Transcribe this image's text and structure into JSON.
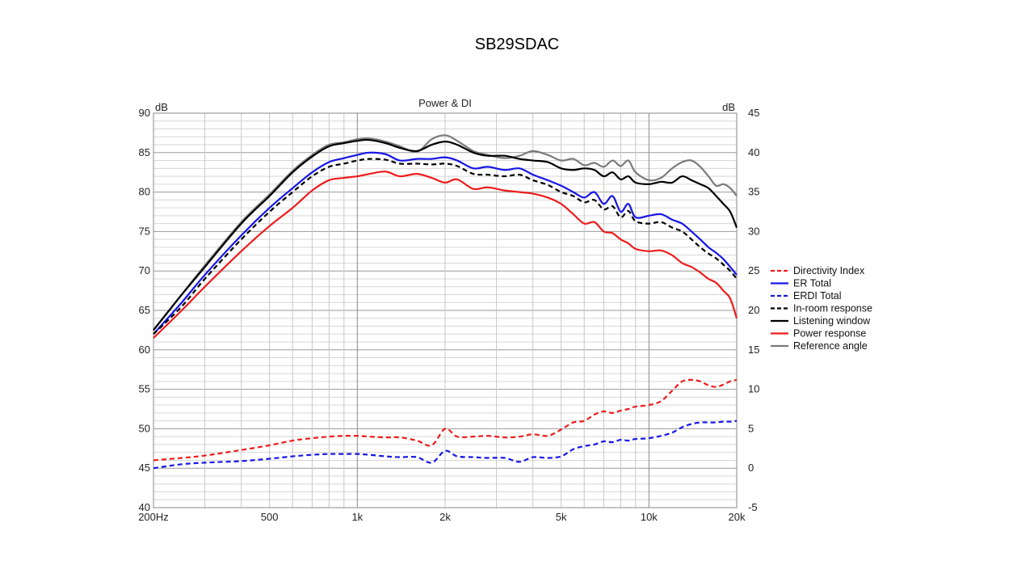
{
  "slide_title": "SB29SDAC",
  "chart_data": {
    "type": "line",
    "title": "Power & DI",
    "left_axis": {
      "unit": "dB",
      "ylim": [
        40,
        90
      ],
      "ticks": [
        40,
        45,
        50,
        55,
        60,
        65,
        70,
        75,
        80,
        85,
        90
      ]
    },
    "right_axis": {
      "unit": "dB",
      "ylim": [
        -5,
        45
      ],
      "ticks": [
        -5,
        0,
        5,
        10,
        15,
        20,
        25,
        30,
        35,
        40,
        45
      ]
    },
    "x_axis": {
      "scale": "log",
      "xlim": [
        200,
        20000
      ],
      "tick_labels": [
        {
          "value": 200,
          "label": "200Hz"
        },
        {
          "value": 500,
          "label": "500"
        },
        {
          "value": 1000,
          "label": "1k"
        },
        {
          "value": 2000,
          "label": "2k"
        },
        {
          "value": 5000,
          "label": "5k"
        },
        {
          "value": 10000,
          "label": "10k"
        },
        {
          "value": 20000,
          "label": "20k"
        }
      ]
    },
    "grid": true,
    "legend_position": "right",
    "x": [
      200,
      250,
      300,
      400,
      500,
      600,
      700,
      800,
      900,
      1000,
      1100,
      1250,
      1400,
      1600,
      1800,
      2000,
      2200,
      2500,
      2800,
      3200,
      3600,
      4000,
      4500,
      5000,
      5500,
      6000,
      6500,
      7000,
      7500,
      8000,
      8500,
      9000,
      10000,
      11000,
      12000,
      13000,
      14000,
      15000,
      16000,
      17000,
      18000,
      19000,
      20000
    ],
    "series": [
      {
        "name": "Directivity Index",
        "color": "#ee1c1c",
        "dashed": true,
        "axis": "right",
        "values": [
          1.0,
          1.3,
          1.6,
          2.3,
          2.9,
          3.5,
          3.8,
          4.0,
          4.1,
          4.1,
          4.0,
          3.9,
          3.9,
          3.5,
          2.9,
          5.0,
          4.0,
          4.0,
          4.1,
          3.9,
          4.0,
          4.3,
          4.1,
          4.9,
          5.8,
          6.0,
          6.8,
          7.2,
          7.0,
          7.3,
          7.5,
          7.8,
          8.0,
          8.5,
          9.8,
          11.0,
          11.2,
          11.0,
          10.5,
          10.3,
          10.6,
          11.0,
          11.2
        ]
      },
      {
        "name": "ER Total",
        "color": "#1616e6",
        "dashed": false,
        "axis": "left",
        "values": [
          62.0,
          66.0,
          69.5,
          74.5,
          78.0,
          80.5,
          82.5,
          83.8,
          84.3,
          84.7,
          85.0,
          84.8,
          84.0,
          84.2,
          84.2,
          84.4,
          84.0,
          83.0,
          83.2,
          82.8,
          83.0,
          82.2,
          81.5,
          80.8,
          80.0,
          79.3,
          80.0,
          78.5,
          79.5,
          77.5,
          78.5,
          76.8,
          77.0,
          77.2,
          76.5,
          76.0,
          75.0,
          74.0,
          73.0,
          72.3,
          71.5,
          70.5,
          69.5
        ]
      },
      {
        "name": "ERDI Total",
        "color": "#1616e6",
        "dashed": true,
        "axis": "right",
        "values": [
          0.0,
          0.5,
          0.7,
          0.9,
          1.2,
          1.5,
          1.7,
          1.8,
          1.8,
          1.8,
          1.7,
          1.5,
          1.4,
          1.4,
          0.7,
          2.2,
          1.5,
          1.4,
          1.3,
          1.3,
          0.8,
          1.4,
          1.3,
          1.5,
          2.4,
          2.8,
          3.0,
          3.4,
          3.3,
          3.6,
          3.5,
          3.7,
          3.8,
          4.1,
          4.5,
          5.2,
          5.6,
          5.8,
          5.8,
          5.8,
          5.9,
          5.9,
          6.0
        ]
      },
      {
        "name": "In-room response",
        "color": "#000000",
        "dashed": true,
        "axis": "left",
        "values": [
          62.0,
          65.5,
          69.0,
          74.0,
          77.5,
          80.0,
          82.0,
          83.2,
          83.6,
          84.0,
          84.2,
          84.1,
          83.6,
          83.6,
          83.5,
          83.6,
          83.3,
          82.3,
          82.2,
          82.0,
          82.2,
          81.5,
          80.9,
          80.0,
          79.5,
          78.7,
          79.0,
          77.8,
          78.2,
          76.8,
          77.6,
          76.3,
          76.0,
          76.2,
          75.5,
          75.0,
          74.0,
          73.0,
          72.2,
          71.6,
          70.8,
          70.0,
          69.0
        ]
      },
      {
        "name": "Listening window",
        "color": "#000000",
        "dashed": false,
        "axis": "left",
        "values": [
          62.5,
          67.0,
          70.5,
          76.0,
          79.5,
          82.5,
          84.5,
          85.8,
          86.2,
          86.5,
          86.6,
          86.2,
          85.6,
          85.2,
          86.0,
          86.4,
          86.0,
          85.0,
          84.6,
          84.6,
          84.2,
          84.0,
          83.8,
          83.0,
          82.8,
          83.0,
          82.8,
          82.0,
          82.5,
          81.6,
          82.0,
          81.2,
          81.0,
          81.3,
          81.2,
          82.0,
          81.5,
          81.0,
          80.5,
          79.5,
          78.5,
          77.5,
          75.5
        ]
      },
      {
        "name": "Power response",
        "color": "#ee1c1c",
        "dashed": false,
        "axis": "left",
        "values": [
          61.5,
          65.0,
          68.0,
          72.5,
          75.7,
          78.0,
          80.2,
          81.5,
          81.8,
          82.0,
          82.3,
          82.6,
          82.0,
          82.3,
          81.8,
          81.2,
          81.6,
          80.4,
          80.6,
          80.2,
          80.0,
          79.8,
          79.3,
          78.5,
          77.2,
          76.0,
          76.2,
          75.0,
          74.8,
          74.0,
          73.5,
          72.8,
          72.5,
          72.6,
          72.0,
          71.0,
          70.5,
          69.8,
          69.0,
          68.5,
          67.5,
          66.5,
          64.0
        ]
      },
      {
        "name": "Reference angle",
        "color": "#7a7a7a",
        "dashed": false,
        "axis": "left",
        "values": [
          62.5,
          67.0,
          70.7,
          76.2,
          79.7,
          82.7,
          84.7,
          86.0,
          86.3,
          86.7,
          86.8,
          86.4,
          85.8,
          85.1,
          86.7,
          87.2,
          86.5,
          85.2,
          84.7,
          84.3,
          84.6,
          85.2,
          84.7,
          84.0,
          84.2,
          83.4,
          83.7,
          83.2,
          84.0,
          83.3,
          84.0,
          82.5,
          81.5,
          81.8,
          83.0,
          83.8,
          84.0,
          83.2,
          82.0,
          80.8,
          81.0,
          80.5,
          79.5
        ]
      }
    ]
  }
}
